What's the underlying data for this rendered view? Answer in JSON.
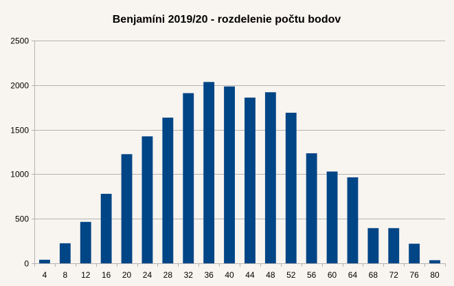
{
  "chart_data": {
    "type": "bar",
    "title": "Benjamíni 2019/20 - rozdelenie počtu bodov",
    "xlabel": "",
    "ylabel": "",
    "categories": [
      "4",
      "8",
      "12",
      "16",
      "20",
      "24",
      "28",
      "32",
      "36",
      "40",
      "44",
      "48",
      "52",
      "56",
      "60",
      "64",
      "68",
      "72",
      "76",
      "80"
    ],
    "values": [
      40,
      225,
      465,
      780,
      1225,
      1425,
      1635,
      1910,
      2035,
      1985,
      1860,
      1920,
      1690,
      1235,
      1030,
      965,
      395,
      395,
      220,
      35
    ],
    "ylim": [
      0,
      2500
    ],
    "yticks": [
      0,
      500,
      1000,
      1500,
      2000,
      2500
    ],
    "grid": true,
    "legend": "none",
    "colors": {
      "bar": "#004586",
      "grid": "#b3b3b3",
      "axis": "#b3b3b3",
      "background": "#f8f4ef"
    }
  }
}
